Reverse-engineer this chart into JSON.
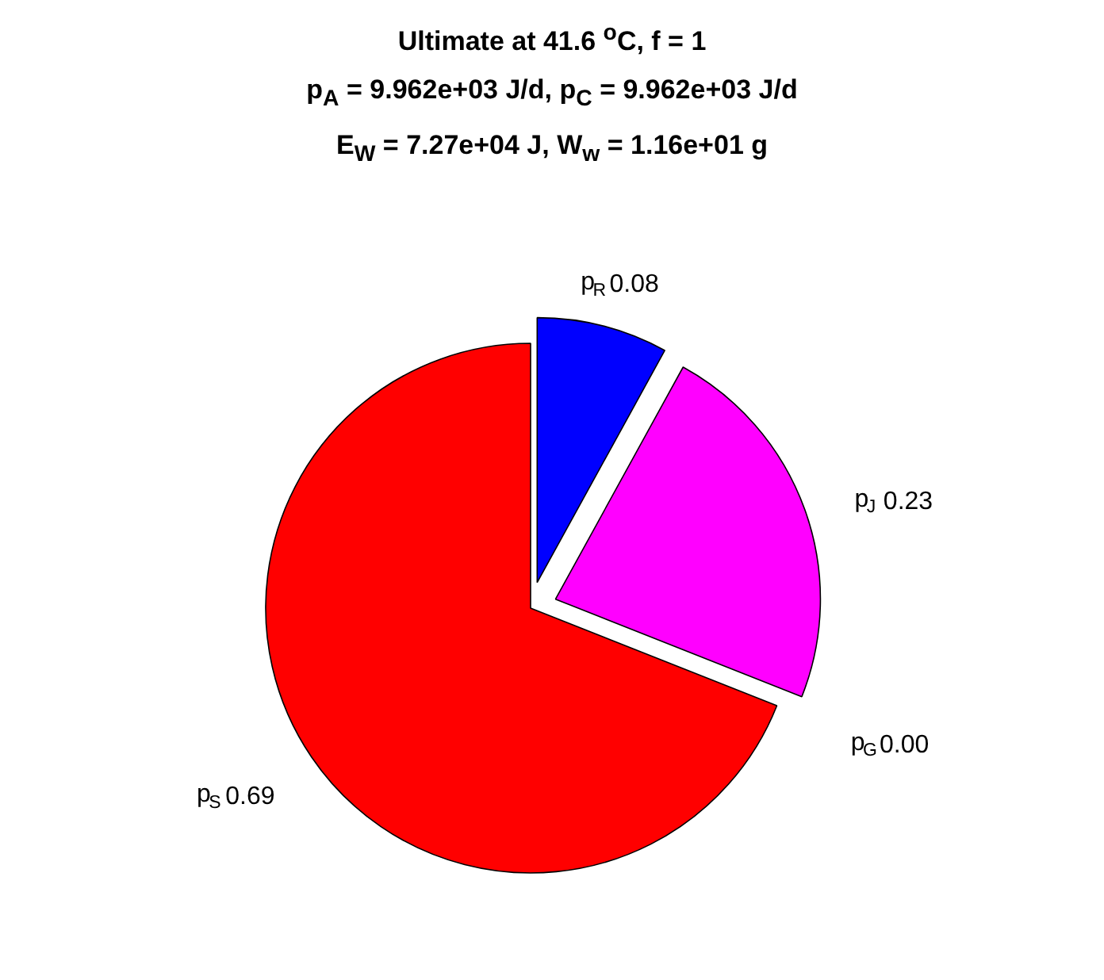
{
  "chart_data": {
    "type": "pie",
    "title": "Ultimate at 41.6 $^{o}$C, f = 1\np$_{A}$ = 9.962e+03 J/d, p$_{C}$ = 9.962e+03 J/d\nE$_{W}$ = 7.27e+04 J, W$_{w}$ = 1.16e+01 g",
    "categories": [
      "p$_{R}$",
      "p$_{J}$",
      "p$_{G}$",
      "p$_{S}$"
    ],
    "values": [
      0.08,
      0.23,
      0.0,
      0.69
    ],
    "value_labels": [
      "0.08",
      "0.23",
      "0.00",
      "0.69"
    ],
    "colors": [
      "#0000ff",
      "#ff00ff",
      "#ff8000",
      "#ff0000"
    ]
  }
}
